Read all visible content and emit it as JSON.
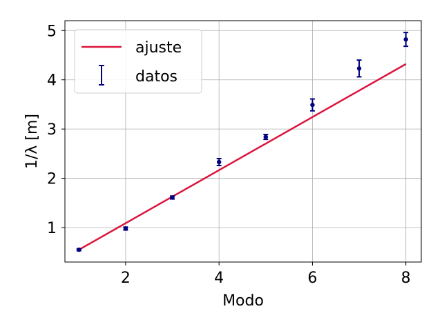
{
  "chart_data": {
    "type": "scatter",
    "xlabel": "Modo",
    "ylabel": "1/λ [m]",
    "xlim": [
      0.7,
      8.33
    ],
    "ylim": [
      0.3,
      5.2
    ],
    "xticks": [
      2,
      4,
      6,
      8
    ],
    "yticks": [
      1,
      2,
      3,
      4,
      5
    ],
    "grid": true,
    "legend_position": "top-left",
    "series": [
      {
        "name": "ajuste",
        "kind": "line",
        "color": "#dc143c",
        "x": [
          1,
          8
        ],
        "y": [
          0.55,
          4.32
        ]
      },
      {
        "name": "datos",
        "kind": "errorbar",
        "color": "#000080",
        "x": [
          1,
          2,
          3,
          4,
          5,
          6,
          7,
          8
        ],
        "y": [
          0.55,
          0.98,
          1.61,
          2.33,
          2.84,
          3.49,
          4.23,
          4.82
        ],
        "yerr": [
          0.02,
          0.03,
          0.03,
          0.07,
          0.05,
          0.12,
          0.17,
          0.14
        ]
      }
    ]
  }
}
